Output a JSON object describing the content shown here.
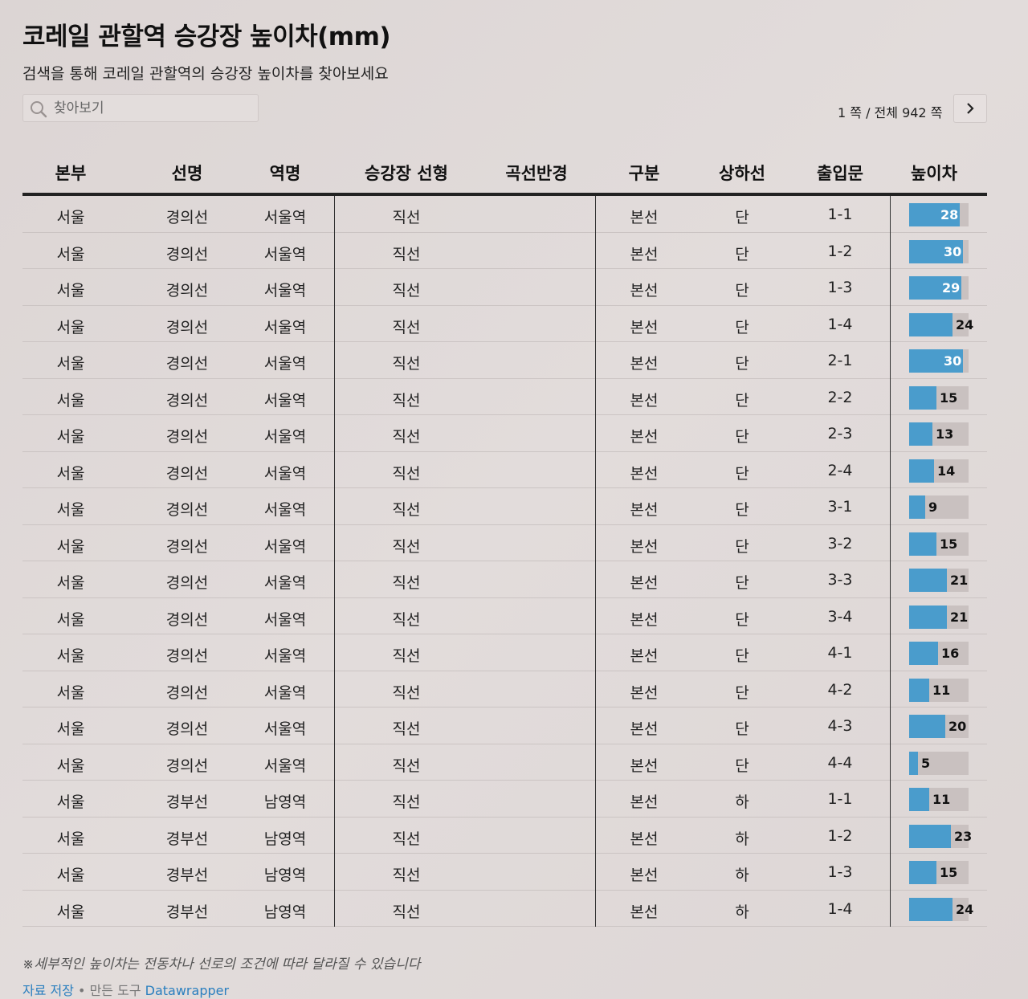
{
  "title": "코레일 관할역 승강장 높이차(mm)",
  "subtitle": "검색을 통해 코레일 관할역의 승강장 높이차를 찾아보세요",
  "search": {
    "placeholder": "찾아보기"
  },
  "pager": {
    "text": "1 쪽 / 전체 942 쪽"
  },
  "note": "※세부적인 높이차는 전동차나 선로의 조건에 따라 달라질 수 있습니다",
  "footer": {
    "save_label": "자료 저장",
    "separator": " • 만든 도구 ",
    "tool_label": "Datawrapper"
  },
  "colors": {
    "bar": "#4a9ccc",
    "bar_bg": "#c9c1c0"
  },
  "chart_data": {
    "type": "table",
    "columns": [
      "본부",
      "선명",
      "역명",
      "승강장 선형",
      "곡선반경",
      "구분",
      "상하선",
      "출입문",
      "높이차"
    ],
    "bar_column": "높이차",
    "bar_max": 33,
    "rows": [
      [
        "서울",
        "경의선",
        "서울역",
        "직선",
        "",
        "본선",
        "단",
        "1-1",
        28
      ],
      [
        "서울",
        "경의선",
        "서울역",
        "직선",
        "",
        "본선",
        "단",
        "1-2",
        30
      ],
      [
        "서울",
        "경의선",
        "서울역",
        "직선",
        "",
        "본선",
        "단",
        "1-3",
        29
      ],
      [
        "서울",
        "경의선",
        "서울역",
        "직선",
        "",
        "본선",
        "단",
        "1-4",
        24
      ],
      [
        "서울",
        "경의선",
        "서울역",
        "직선",
        "",
        "본선",
        "단",
        "2-1",
        30
      ],
      [
        "서울",
        "경의선",
        "서울역",
        "직선",
        "",
        "본선",
        "단",
        "2-2",
        15
      ],
      [
        "서울",
        "경의선",
        "서울역",
        "직선",
        "",
        "본선",
        "단",
        "2-3",
        13
      ],
      [
        "서울",
        "경의선",
        "서울역",
        "직선",
        "",
        "본선",
        "단",
        "2-4",
        14
      ],
      [
        "서울",
        "경의선",
        "서울역",
        "직선",
        "",
        "본선",
        "단",
        "3-1",
        9
      ],
      [
        "서울",
        "경의선",
        "서울역",
        "직선",
        "",
        "본선",
        "단",
        "3-2",
        15
      ],
      [
        "서울",
        "경의선",
        "서울역",
        "직선",
        "",
        "본선",
        "단",
        "3-3",
        21
      ],
      [
        "서울",
        "경의선",
        "서울역",
        "직선",
        "",
        "본선",
        "단",
        "3-4",
        21
      ],
      [
        "서울",
        "경의선",
        "서울역",
        "직선",
        "",
        "본선",
        "단",
        "4-1",
        16
      ],
      [
        "서울",
        "경의선",
        "서울역",
        "직선",
        "",
        "본선",
        "단",
        "4-2",
        11
      ],
      [
        "서울",
        "경의선",
        "서울역",
        "직선",
        "",
        "본선",
        "단",
        "4-3",
        20
      ],
      [
        "서울",
        "경의선",
        "서울역",
        "직선",
        "",
        "본선",
        "단",
        "4-4",
        5
      ],
      [
        "서울",
        "경부선",
        "남영역",
        "직선",
        "",
        "본선",
        "하",
        "1-1",
        11
      ],
      [
        "서울",
        "경부선",
        "남영역",
        "직선",
        "",
        "본선",
        "하",
        "1-2",
        23
      ],
      [
        "서울",
        "경부선",
        "남영역",
        "직선",
        "",
        "본선",
        "하",
        "1-3",
        15
      ],
      [
        "서울",
        "경부선",
        "남영역",
        "직선",
        "",
        "본선",
        "하",
        "1-4",
        24
      ]
    ]
  }
}
